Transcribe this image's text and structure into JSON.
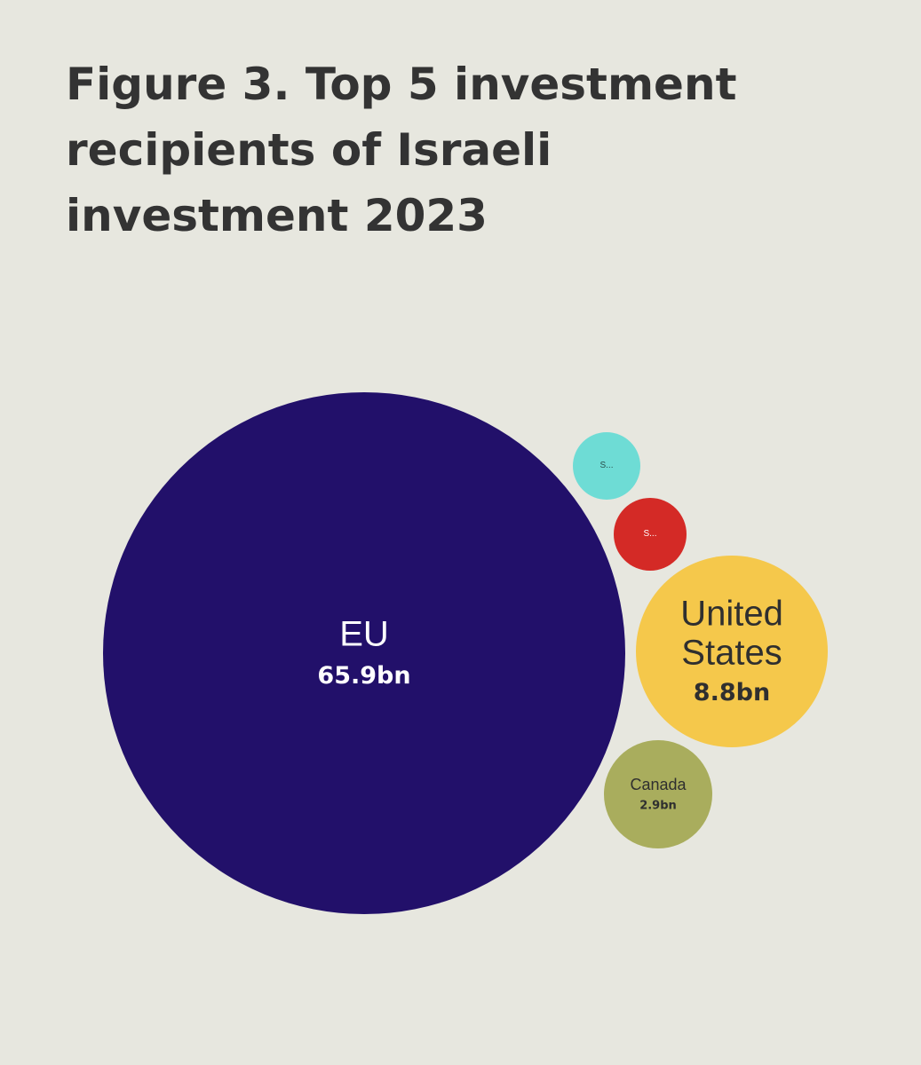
{
  "title": {
    "lines": [
      "Figure 3. Top 5 investment",
      "recipients of Israeli",
      "investment 2023"
    ]
  },
  "chart_data": {
    "type": "bubble",
    "title": "Figure 3. Top 5 investment recipients of Israeli investment 2023",
    "unit": "bn",
    "items": [
      {
        "name": "EU",
        "lines": [
          "EU"
        ],
        "value": 65.9,
        "value_label": "65.9bn",
        "color": "#22106a",
        "text_color": "#ffffff"
      },
      {
        "name": "S...",
        "lines": [
          "S..."
        ],
        "value": 1.3,
        "value_label": "",
        "color": "#6edcd5",
        "text_color": "#2a4f4c"
      },
      {
        "name": "S...",
        "lines": [
          "S..."
        ],
        "value": 1.3,
        "value_label": "",
        "color": "#d42a26",
        "text_color": "#ffffff"
      },
      {
        "name": "United States",
        "lines": [
          "United",
          "States"
        ],
        "value": 8.8,
        "value_label": "8.8bn",
        "color": "#f5c84b",
        "text_color": "#2f2f2f"
      },
      {
        "name": "Canada",
        "lines": [
          "Canada"
        ],
        "value": 2.9,
        "value_label": "2.9bn",
        "color": "#a9ad5d",
        "text_color": "#2f2f2f"
      }
    ]
  }
}
